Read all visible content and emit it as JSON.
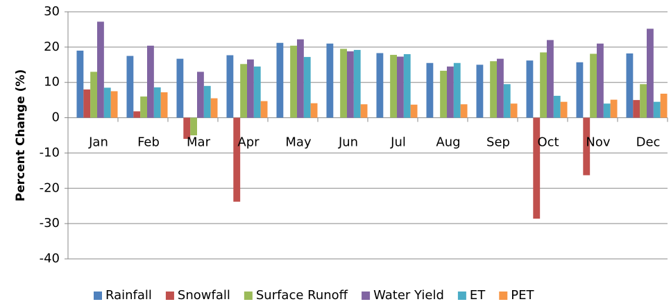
{
  "chart_data": {
    "type": "bar",
    "y_label": "Percent Change (%)",
    "categories": [
      "Jan",
      "Feb",
      "Mar",
      "Apr",
      "May",
      "Jun",
      "Jul",
      "Aug",
      "Sep",
      "Oct",
      "Nov",
      "Dec"
    ],
    "series": [
      {
        "name": "Rainfall",
        "color": "#4f81bd",
        "values": [
          19,
          17.5,
          16.7,
          17.7,
          21.2,
          21,
          18.3,
          15.5,
          15,
          16.2,
          15.7,
          18.2
        ]
      },
      {
        "name": "Snowfall",
        "color": "#c0504d",
        "values": [
          8,
          1.8,
          -6,
          -23.8,
          0,
          0,
          0,
          0,
          0,
          -28.6,
          -16.3,
          5
        ]
      },
      {
        "name": "Surface Runoff",
        "color": "#9bbb59",
        "values": [
          13,
          6,
          -5,
          15.2,
          20.4,
          19.5,
          17.8,
          13.3,
          16,
          18.5,
          18.1,
          9.5
        ]
      },
      {
        "name": "Water Yield",
        "color": "#8064a2",
        "values": [
          27.2,
          20.4,
          13,
          16.5,
          22.2,
          18.8,
          17.3,
          14.5,
          16.7,
          22,
          21,
          25.2
        ]
      },
      {
        "name": "ET",
        "color": "#4bacc6",
        "values": [
          8.5,
          8.6,
          9,
          14.5,
          17.2,
          19.2,
          18,
          15.5,
          9.5,
          6.2,
          4,
          4.5
        ]
      },
      {
        "name": "PET",
        "color": "#f79646",
        "values": [
          7.5,
          7.2,
          5.5,
          4.7,
          4.1,
          3.8,
          3.7,
          3.8,
          4,
          4.5,
          5.1,
          6.8
        ]
      }
    ],
    "ylim": [
      -40,
      30
    ],
    "yticks": [
      -40,
      -30,
      -20,
      -10,
      0,
      10,
      20,
      30
    ],
    "grid": true,
    "legend": "bottom"
  }
}
